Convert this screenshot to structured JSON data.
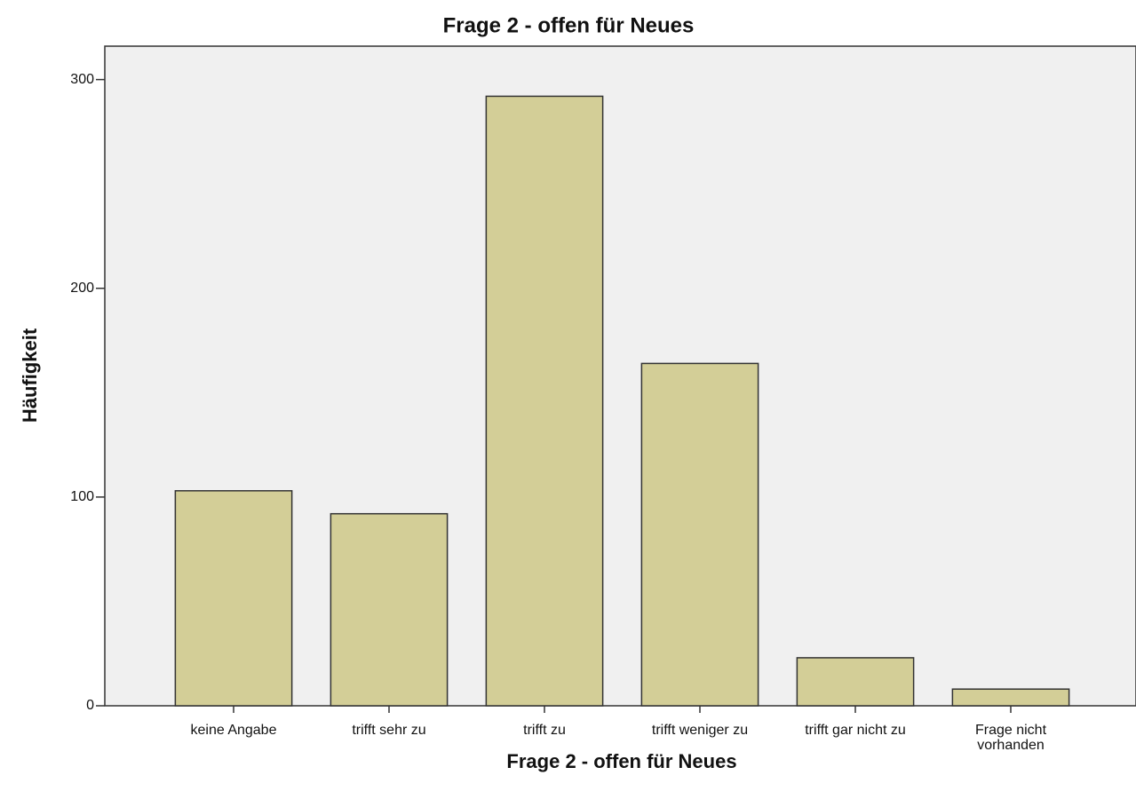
{
  "chart_data": {
    "type": "bar",
    "title": "Frage 2 - offen für Neues",
    "x_label": "Frage 2 - offen für Neues",
    "y_label": "Häufigkeit",
    "categories": [
      "keine Angabe",
      "trifft sehr zu",
      "trifft zu",
      "trifft weniger zu",
      "trifft gar nicht zu",
      "Frage nicht\nvorhanden"
    ],
    "values": [
      103,
      92,
      292,
      164,
      23,
      8
    ],
    "color": "#d3ce97",
    "ylim": [
      0,
      316
    ],
    "yticks": [
      0,
      100,
      200,
      300
    ],
    "grid": false
  }
}
